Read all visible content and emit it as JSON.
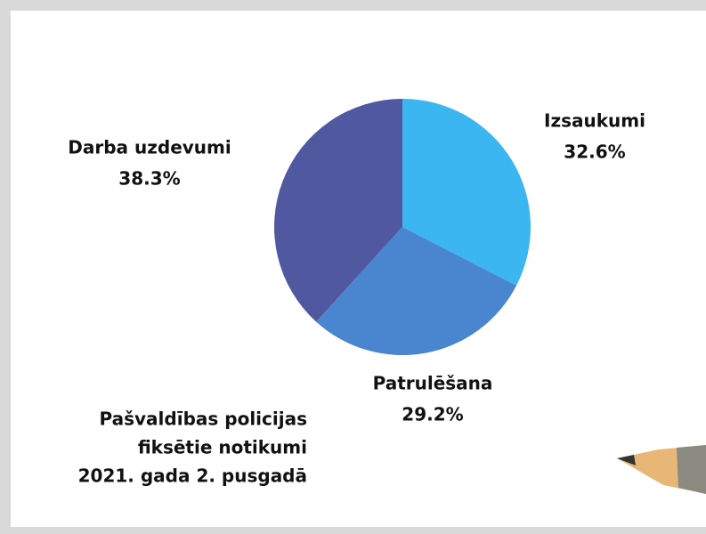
{
  "chart_data": {
    "type": "pie",
    "title": [
      "Pašvaldības policijas",
      "fiksētie notikumi",
      "2021. gada 2. pusgadā"
    ],
    "categories": [
      "Izsaukumi",
      "Patrulēšana",
      "Darba uzdevumi"
    ],
    "values": [
      32.6,
      29.2,
      38.3
    ],
    "value_labels": [
      "32.6%",
      "29.2%",
      "38.3%"
    ],
    "colors": [
      "#3bb6f0",
      "#4a86d0",
      "#5058a0"
    ]
  }
}
